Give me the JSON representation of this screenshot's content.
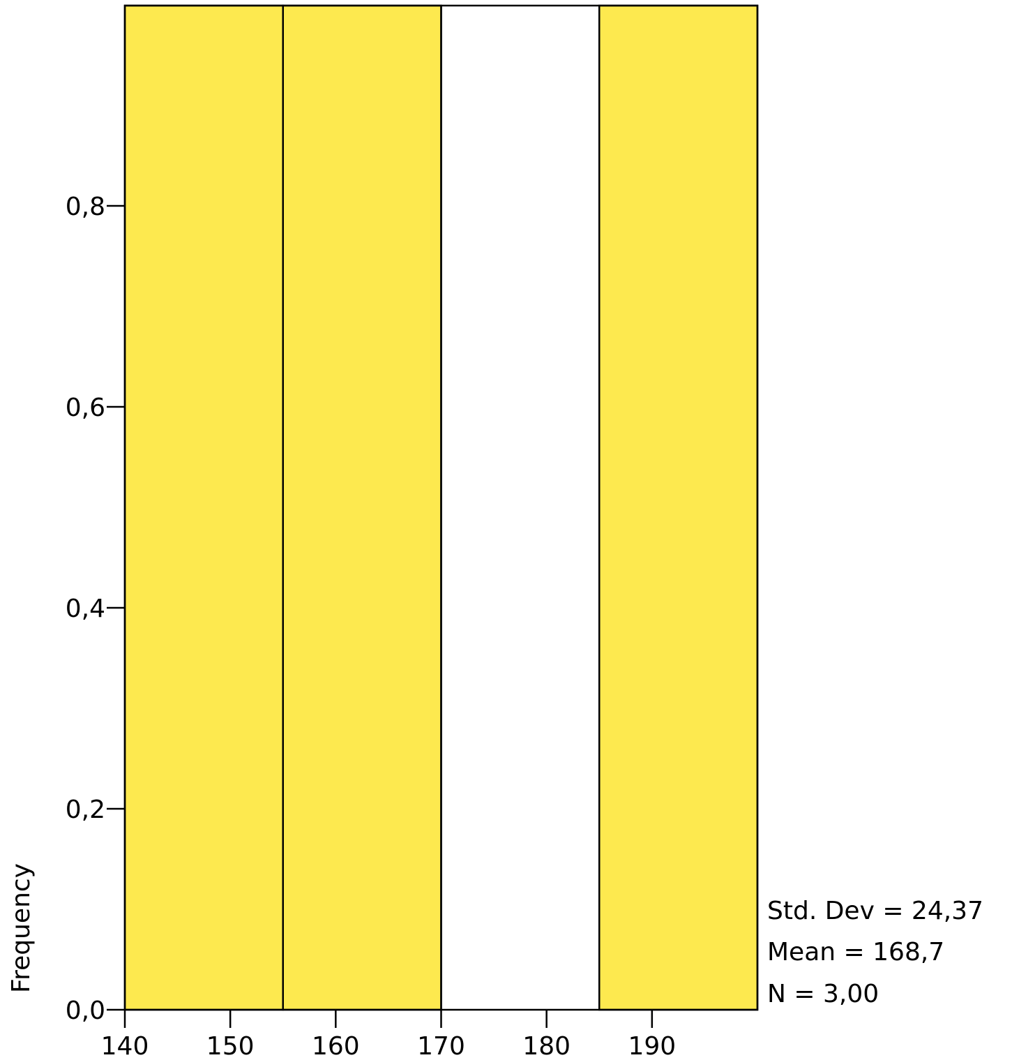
{
  "chart_data": {
    "type": "bar",
    "ylabel": "Frequency",
    "xlabel": "",
    "bin_edges": [
      140,
      155,
      170,
      185,
      200
    ],
    "values": [
      1,
      1,
      0,
      1
    ],
    "xlim": [
      140,
      200
    ],
    "ylim": [
      0,
      1
    ],
    "x_ticks": [
      140,
      150,
      160,
      170,
      180,
      190
    ],
    "x_tick_labels": [
      "140",
      "150",
      "160",
      "170",
      "180",
      "190"
    ],
    "y_ticks": [
      0,
      0.2,
      0.4,
      0.6,
      0.8
    ],
    "y_tick_labels": [
      "0,0",
      "0,2",
      "0,4",
      "0,6",
      "0,8"
    ],
    "grid": false,
    "legend": "none",
    "bar_color": "#fde94f",
    "bar_edge_color": "#000000"
  },
  "stats": {
    "std_dev": "Std. Dev = 24,37",
    "mean": "Mean = 168,7",
    "n": "N = 3,00"
  }
}
